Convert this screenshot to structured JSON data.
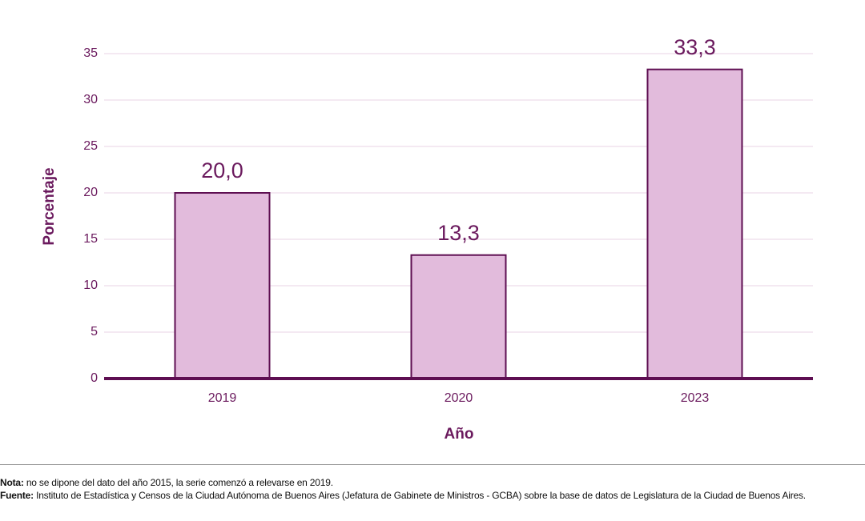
{
  "chart_data": {
    "type": "bar",
    "x_label": "Año",
    "y_label": "Porcentaje",
    "categories": [
      "2019",
      "2020",
      "2023"
    ],
    "values": [
      20.0,
      13.3,
      33.3
    ],
    "value_labels": [
      "20,0",
      "13,3",
      "33,3"
    ],
    "color": "#e2bbdc",
    "edge_color": "#5e0f52",
    "ylim": [
      0,
      35
    ],
    "yticks": [
      0,
      5,
      10,
      15,
      20,
      25,
      30,
      35
    ],
    "grid": true
  },
  "notes": [
    {
      "label": "Nota:",
      "text": "no se dipone del dato del año 2015, la serie comenzó a relevarse en 2019."
    },
    {
      "label": "Fuente:",
      "text": "Instituto de Estadística y Censos de la Ciudad Autónoma de Buenos Aires (Jefatura de Gabinete de Ministros - GCBA) sobre la base de datos de Legislatura de la Ciudad de Buenos Aires."
    }
  ]
}
